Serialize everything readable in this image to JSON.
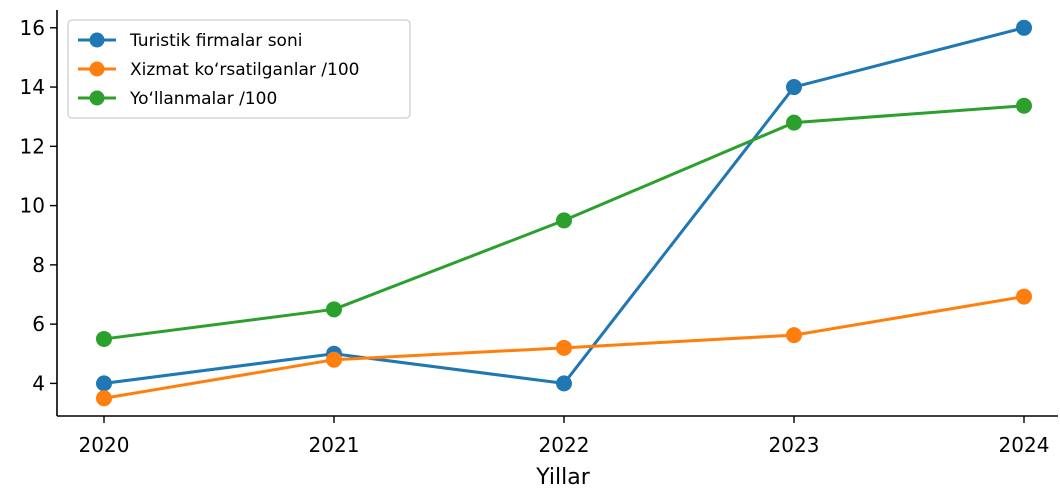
{
  "chart_data": {
    "type": "line",
    "xlabel": "Yillar",
    "ylabel": "",
    "categories": [
      "2020",
      "2021",
      "2022",
      "2023",
      "2024"
    ],
    "ylim": [
      2.9,
      16.6
    ],
    "yticks": [
      4,
      6,
      8,
      10,
      12,
      14,
      16
    ],
    "grid": false,
    "legend_position": "top-left",
    "series": [
      {
        "name": "Turistik firmalar soni",
        "color": "#1f77b4",
        "values": [
          4,
          5,
          4,
          14,
          16
        ]
      },
      {
        "name": "Xizmat ko‘rsatilganlar /100",
        "color": "#ff7f0e",
        "values": [
          3.5,
          4.8,
          5.2,
          5.63,
          6.93
        ]
      },
      {
        "name": "Yo‘llanmalar /100",
        "color": "#2ca02c",
        "values": [
          5.5,
          6.5,
          9.5,
          12.8,
          13.37
        ]
      }
    ]
  }
}
